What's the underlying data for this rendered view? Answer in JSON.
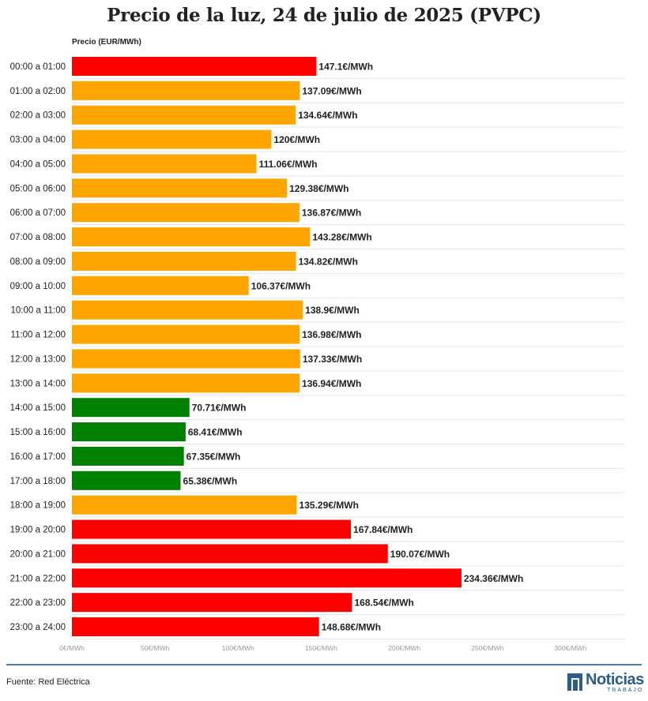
{
  "title": "Precio de la luz, 24 de julio de 2025 (PVPC)",
  "source": "Fuente: Red Eléctrica",
  "logo": {
    "name": "Noticias",
    "sub": "TRABAJO"
  },
  "colors": {
    "high": "#ff0000",
    "mid": "#ffa500",
    "low": "#008000",
    "grid": "#e6e6e6",
    "footer_line": "#4a7fb0"
  },
  "chart_data": {
    "type": "bar",
    "orientation": "horizontal",
    "title": "Precio de la luz, 24 de julio de 2025 (PVPC)",
    "ylabel": "Precio (EUR/MWh)",
    "xlim": [
      0,
      300
    ],
    "x_ticks": [
      0,
      50,
      100,
      150,
      200,
      250,
      300
    ],
    "x_tick_labels": [
      "0€/MWh",
      "50€/MWh",
      "100€/MWh",
      "150€/MWh",
      "200€/MWh",
      "250€/MWh",
      "300€/MWh"
    ],
    "grid": true,
    "categories": [
      "00:00 a 01:00",
      "01:00 a 02:00",
      "02:00 a 03:00",
      "03:00 a 04:00",
      "04:00 a 05:00",
      "05:00 a 06:00",
      "06:00 a 07:00",
      "07:00 a 08:00",
      "08:00 a 09:00",
      "09:00 a 10:00",
      "10:00 a 11:00",
      "11:00 a 12:00",
      "12:00 a 13:00",
      "13:00 a 14:00",
      "14:00 a 15:00",
      "15:00 a 16:00",
      "16:00 a 17:00",
      "17:00 a 18:00",
      "18:00 a 19:00",
      "19:00 a 20:00",
      "20:00 a 21:00",
      "21:00 a 22:00",
      "22:00 a 23:00",
      "23:00 a 24:00"
    ],
    "values": [
      147.1,
      137.09,
      134.64,
      120,
      111.06,
      129.38,
      136.87,
      143.28,
      134.82,
      106.37,
      138.9,
      136.98,
      137.33,
      136.94,
      70.71,
      68.41,
      67.35,
      65.38,
      135.29,
      167.84,
      190.07,
      234.36,
      168.54,
      148.68
    ],
    "value_labels": [
      "147.1€/MWh",
      "137.09€/MWh",
      "134.64€/MWh",
      "120€/MWh",
      "111.06€/MWh",
      "129.38€/MWh",
      "136.87€/MWh",
      "143.28€/MWh",
      "134.82€/MWh",
      "106.37€/MWh",
      "138.9€/MWh",
      "136.98€/MWh",
      "137.33€/MWh",
      "136.94€/MWh",
      "70.71€/MWh",
      "68.41€/MWh",
      "67.35€/MWh",
      "65.38€/MWh",
      "135.29€/MWh",
      "167.84€/MWh",
      "190.07€/MWh",
      "234.36€/MWh",
      "168.54€/MWh",
      "148.68€/MWh"
    ],
    "bar_colors": [
      "#ff0000",
      "#ffa500",
      "#ffa500",
      "#ffa500",
      "#ffa500",
      "#ffa500",
      "#ffa500",
      "#ffa500",
      "#ffa500",
      "#ffa500",
      "#ffa500",
      "#ffa500",
      "#ffa500",
      "#ffa500",
      "#008000",
      "#008000",
      "#008000",
      "#008000",
      "#ffa500",
      "#ff0000",
      "#ff0000",
      "#ff0000",
      "#ff0000",
      "#ff0000"
    ]
  }
}
